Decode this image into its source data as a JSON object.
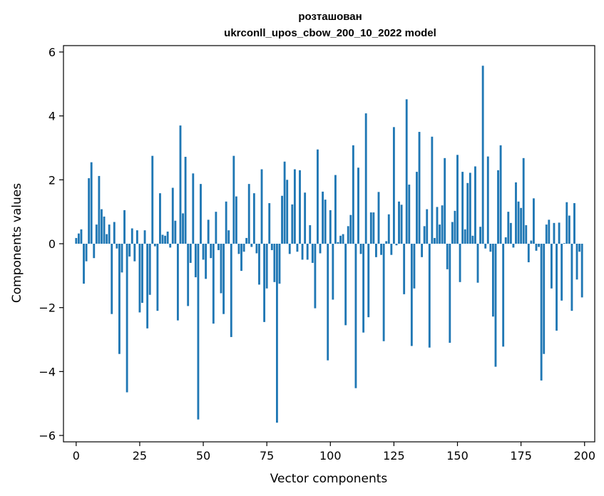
{
  "chart_data": {
    "type": "bar",
    "title": [
      "розташован",
      "ukrconll_upos_cbow_200_10_2022 model"
    ],
    "xlabel": "Vector components",
    "ylabel": "Components values",
    "xlim": [
      -5,
      204
    ],
    "ylim": [
      -6.2,
      6.2
    ],
    "xticks": [
      {
        "value": 0,
        "label": "0"
      },
      {
        "value": 25,
        "label": "25"
      },
      {
        "value": 50,
        "label": "50"
      },
      {
        "value": 75,
        "label": "75"
      },
      {
        "value": 100,
        "label": "100"
      },
      {
        "value": 125,
        "label": "125"
      },
      {
        "value": 150,
        "label": "150"
      },
      {
        "value": 175,
        "label": "175"
      },
      {
        "value": 200,
        "label": "200"
      }
    ],
    "yticks": [
      {
        "value": -6,
        "label": "−6"
      },
      {
        "value": -4,
        "label": "−4"
      },
      {
        "value": -2,
        "label": "−2"
      },
      {
        "value": 0,
        "label": "0"
      },
      {
        "value": 2,
        "label": "2"
      },
      {
        "value": 4,
        "label": "4"
      },
      {
        "value": 6,
        "label": "6"
      }
    ],
    "bar_color": "#1f77b4",
    "grid": false,
    "values": [
      0.18,
      0.32,
      0.45,
      -1.25,
      -0.55,
      2.05,
      2.55,
      -0.45,
      0.6,
      2.12,
      1.08,
      0.85,
      0.3,
      0.6,
      -2.2,
      0.68,
      -0.15,
      -3.45,
      -0.9,
      1.05,
      -4.65,
      -0.4,
      0.48,
      -0.55,
      0.42,
      -2.15,
      -1.85,
      0.42,
      -2.65,
      -1.6,
      2.75,
      -0.08,
      -2.1,
      1.58,
      0.28,
      0.25,
      0.38,
      -0.12,
      1.75,
      0.72,
      -2.4,
      3.7,
      0.95,
      2.72,
      -1.95,
      -0.6,
      2.2,
      -1.05,
      -5.5,
      1.87,
      -0.5,
      -1.1,
      0.75,
      -0.45,
      -2.5,
      1.0,
      -0.2,
      -1.55,
      -2.2,
      1.32,
      0.42,
      -2.92,
      2.75,
      1.48,
      -0.32,
      -0.85,
      -0.25,
      0.18,
      1.87,
      -0.1,
      1.58,
      -0.3,
      -1.28,
      2.33,
      -2.45,
      -1.4,
      1.27,
      -0.2,
      -1.2,
      -5.6,
      -1.25,
      1.5,
      2.57,
      2.0,
      -0.32,
      1.23,
      2.33,
      -0.25,
      2.3,
      -0.5,
      1.6,
      -0.5,
      0.58,
      -0.6,
      -2.02,
      2.95,
      -0.3,
      1.63,
      1.38,
      -3.65,
      1.05,
      -1.75,
      2.15,
      0.05,
      0.25,
      0.3,
      -2.55,
      0.55,
      0.9,
      3.08,
      -4.52,
      2.38,
      -0.32,
      -2.78,
      4.08,
      -2.3,
      0.98,
      0.98,
      -0.42,
      1.62,
      -0.35,
      -3.05,
      0.08,
      0.92,
      -0.35,
      3.65,
      -0.05,
      1.32,
      1.22,
      -1.58,
      4.52,
      1.85,
      -3.2,
      -1.4,
      2.25,
      3.5,
      -0.42,
      0.55,
      1.08,
      -3.25,
      3.35,
      0.18,
      1.15,
      0.6,
      1.2,
      2.68,
      -0.8,
      -3.1,
      0.68,
      1.03,
      2.78,
      -1.2,
      2.25,
      0.45,
      1.9,
      2.22,
      0.25,
      2.42,
      -1.22,
      0.53,
      5.57,
      -0.15,
      2.73,
      -0.25,
      -2.28,
      -3.85,
      2.3,
      3.08,
      -3.22,
      0.2,
      1.0,
      0.65,
      -0.12,
      1.92,
      1.32,
      1.12,
      2.68,
      0.58,
      -0.58,
      0.1,
      1.42,
      -0.22,
      -0.1,
      -4.28,
      -3.45,
      0.6,
      0.75,
      -1.4,
      0.65,
      -2.72,
      0.66,
      -1.78,
      0.02,
      1.3,
      0.88,
      -2.1,
      1.27,
      -1.12,
      -0.25,
      -1.68
    ]
  }
}
